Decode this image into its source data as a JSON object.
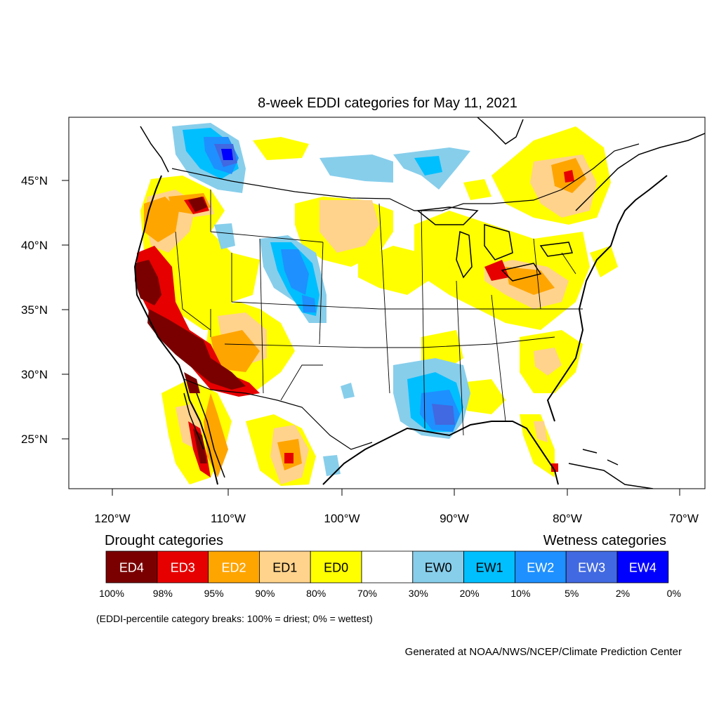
{
  "title": "8-week EDDI categories for May 11, 2021",
  "axes": {
    "lat_labels": [
      "45°N",
      "40°N",
      "35°N",
      "30°N",
      "25°N"
    ],
    "lon_labels": [
      "120°W",
      "110°W",
      "100°W",
      "90°W",
      "80°W",
      "70°W"
    ]
  },
  "legend": {
    "drought_heading": "Drought categories",
    "wetness_heading": "Wetness categories",
    "categories": [
      {
        "label": "ED4",
        "color": "#7a0000",
        "text_color": "#ffffff"
      },
      {
        "label": "ED3",
        "color": "#e60000",
        "text_color": "#ffffff"
      },
      {
        "label": "ED2",
        "color": "#ffa500",
        "text_color": "#ffffff"
      },
      {
        "label": "ED1",
        "color": "#ffd38c",
        "text_color": "#000000"
      },
      {
        "label": "ED0",
        "color": "#ffff00",
        "text_color": "#000000"
      },
      {
        "label": "",
        "color": "#ffffff",
        "text_color": "#000000"
      },
      {
        "label": "EW0",
        "color": "#87ceeb",
        "text_color": "#000000"
      },
      {
        "label": "EW1",
        "color": "#00bfff",
        "text_color": "#000000"
      },
      {
        "label": "EW2",
        "color": "#1e90ff",
        "text_color": "#ffffff"
      },
      {
        "label": "EW3",
        "color": "#4169e1",
        "text_color": "#ffffff"
      },
      {
        "label": "EW4",
        "color": "#0000ff",
        "text_color": "#ffffff"
      }
    ],
    "breaks": [
      "100%",
      "98%",
      "95%",
      "90%",
      "80%",
      "70%",
      "30%",
      "20%",
      "10%",
      "5%",
      "2%",
      "0%"
    ]
  },
  "note": "(EDDI-percentile category breaks: 100% = driest; 0% = wettest)",
  "credit": "Generated at NOAA/NWS/NCEP/Climate Prediction Center"
}
